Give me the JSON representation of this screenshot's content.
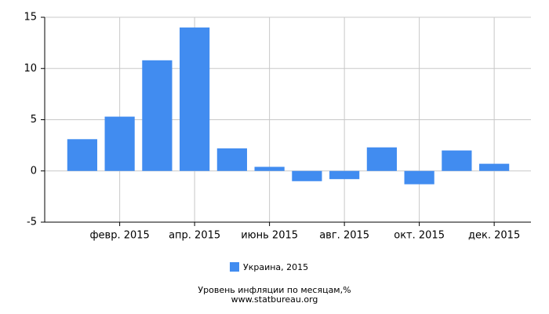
{
  "chart_data": {
    "type": "bar",
    "categories": [
      null,
      "февр. 2015",
      null,
      "апр. 2015",
      null,
      "июнь 2015",
      null,
      "авг. 2015",
      null,
      "окт. 2015",
      null,
      "дек. 2015"
    ],
    "series": [
      {
        "name": "Украина, 2015",
        "color": "#418cf0",
        "values": [
          3.1,
          5.3,
          10.8,
          14.0,
          2.2,
          0.4,
          -1.0,
          -0.8,
          2.3,
          -1.3,
          2.0,
          0.7
        ]
      }
    ],
    "ylim": [
      -5,
      15
    ],
    "yticks": [
      -5,
      0,
      5,
      10,
      15
    ],
    "grid": true,
    "title": "Уровень инфляции по месяцам,%",
    "subtitle": "www.statbureau.org"
  }
}
